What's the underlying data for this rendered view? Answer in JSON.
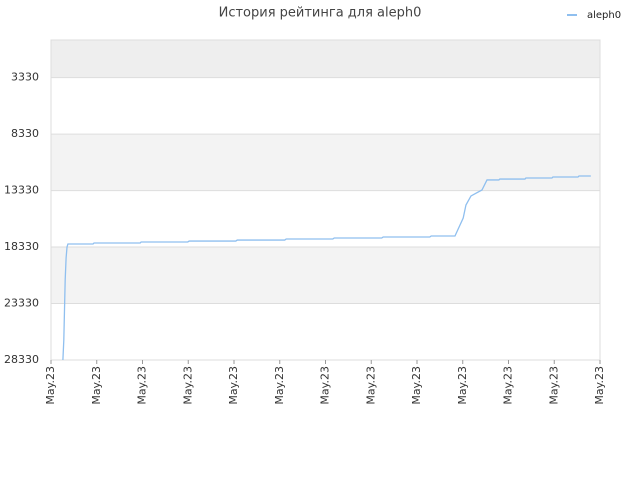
{
  "chart_data": {
    "type": "line",
    "title": "История рейтинга для aleph0",
    "xlim": [
      0,
      12
    ],
    "xticks": [
      {
        "value": 0,
        "label": "May.23"
      },
      {
        "value": 1,
        "label": "May.23"
      },
      {
        "value": 2,
        "label": "May.23"
      },
      {
        "value": 3,
        "label": "May.23"
      },
      {
        "value": 4,
        "label": "May.23"
      },
      {
        "value": 5,
        "label": "May.23"
      },
      {
        "value": 6,
        "label": "May.23"
      },
      {
        "value": 7,
        "label": "May.23"
      },
      {
        "value": 8,
        "label": "May.23"
      },
      {
        "value": 9,
        "label": "May.23"
      },
      {
        "value": 10,
        "label": "May.23"
      },
      {
        "value": 11,
        "label": "May.23"
      },
      {
        "value": 12,
        "label": "May.23"
      }
    ],
    "ylim": [
      28330,
      0
    ],
    "yticks": [
      3330,
      8330,
      13330,
      18330,
      23330,
      28330
    ],
    "grid": true,
    "legend": "top-right",
    "series": [
      {
        "name": "aleph0",
        "color": "#8fbfef",
        "x": [
          0.26,
          0.28,
          0.31,
          0.33,
          0.35,
          0.37,
          0.92,
          0.94,
          1.95,
          1.97,
          2.99,
          3.02,
          4.04,
          4.07,
          5.11,
          5.14,
          6.16,
          6.19,
          7.23,
          7.26,
          8.28,
          8.31,
          8.83,
          9.01,
          9.07,
          9.18,
          9.42,
          9.53,
          9.79,
          9.81,
          10.36,
          10.38,
          10.95,
          10.97,
          11.52,
          11.54,
          11.8
        ],
        "values": [
          28330,
          26560,
          21250,
          19300,
          18330,
          18060,
          18060,
          17970,
          17970,
          17880,
          17880,
          17800,
          17800,
          17710,
          17710,
          17620,
          17620,
          17530,
          17530,
          17440,
          17440,
          17350,
          17350,
          15760,
          14610,
          13810,
          13280,
          12390,
          12390,
          12310,
          12310,
          12220,
          12220,
          12130,
          12130,
          12040,
          12040
        ]
      }
    ]
  }
}
